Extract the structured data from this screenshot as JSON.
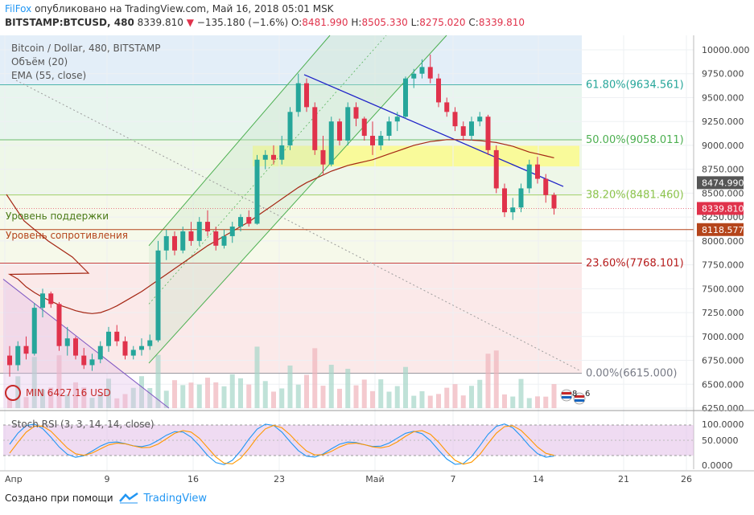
{
  "header": {
    "author": "FilFox",
    "published_text": "опубликовано на TradingView.com, Май 16, 2018 05:01 MSK",
    "symbol_line": "BITSTAMP:BTCUSD, 480",
    "last": "8339.810",
    "change": "−135.180 (−1.6%)",
    "o_label": "O:",
    "o": "8481.990",
    "h_label": "H:",
    "h": "8505.330",
    "l_label": "L:",
    "l": "8275.020",
    "c_label": "C:",
    "c": "8339.810"
  },
  "pane": {
    "title": "Bitcoin / Dollar, 480, BITSTAMP",
    "volume_label": "Объём (20)",
    "ema_label": "EMA (55, close)",
    "support_label": "Уровень поддержки",
    "resistance_label": "Уровень сопротивления",
    "min_label": "MIN 6427.16 USD",
    "event_count": "8",
    "event_count2": "6"
  },
  "fib": [
    {
      "pct": "61.80%",
      "value": "9634.561",
      "color": "#26a69a"
    },
    {
      "pct": "50.00%",
      "value": "9058.011",
      "color": "#4caf50"
    },
    {
      "pct": "38.20%",
      "value": "8481.460",
      "color": "#8bc34a"
    },
    {
      "pct": "23.60%",
      "value": "7768.101",
      "color": "#b71c1c"
    },
    {
      "pct": "0.00%",
      "value": "6615.000",
      "color": "#787b86"
    }
  ],
  "price_axis": [
    "10000.000",
    "9750.000",
    "9500.000",
    "9250.000",
    "9000.000",
    "8750.000",
    "8500.000",
    "8250.000",
    "8000.000",
    "7750.000",
    "7500.000",
    "7250.000",
    "7000.000",
    "6750.000",
    "6500.000",
    "6250.000"
  ],
  "price_tags": [
    {
      "value": "8474.990",
      "bg": "#555555"
    },
    {
      "value": "8339.810",
      "bg": "#e0324b"
    },
    {
      "value": "8118.577",
      "bg": "#b5451b"
    }
  ],
  "stoch": {
    "label": "Stoch RSI (3, 3, 14, 14, close)",
    "axis": [
      "100.0000",
      "50.0000",
      "0.0000"
    ]
  },
  "time_axis": [
    "Апр",
    "9",
    "16",
    "23",
    "Май",
    "7",
    "14",
    "21",
    "26"
  ],
  "footer": {
    "made_with": "Создано при помощи",
    "brand": "TradingView"
  },
  "colors": {
    "up": "#26a69a",
    "down": "#e0324b",
    "ema": "#a52714",
    "trend": "#1e22c8",
    "channel": "#4caf50",
    "stoch_k": "#2196f3",
    "stoch_d": "#ff9800"
  },
  "chart_data": {
    "type": "candlestick",
    "symbol": "BITSTAMP:BTCUSD",
    "timeframe": "480",
    "candles": [
      {
        "o": 6800,
        "h": 6900,
        "l": 6580,
        "c": 6700
      },
      {
        "o": 6700,
        "h": 6950,
        "l": 6640,
        "c": 6900
      },
      {
        "o": 6900,
        "h": 7000,
        "l": 6760,
        "c": 6820
      },
      {
        "o": 6820,
        "h": 7350,
        "l": 6800,
        "c": 7300
      },
      {
        "o": 7300,
        "h": 7500,
        "l": 7200,
        "c": 7450
      },
      {
        "o": 7450,
        "h": 7470,
        "l": 7300,
        "c": 7340
      },
      {
        "o": 7340,
        "h": 7360,
        "l": 6850,
        "c": 6900
      },
      {
        "o": 6900,
        "h": 7100,
        "l": 6800,
        "c": 6980
      },
      {
        "o": 6980,
        "h": 7000,
        "l": 6760,
        "c": 6800
      },
      {
        "o": 6800,
        "h": 6880,
        "l": 6660,
        "c": 6700
      },
      {
        "o": 6700,
        "h": 6820,
        "l": 6640,
        "c": 6760
      },
      {
        "o": 6760,
        "h": 6950,
        "l": 6720,
        "c": 6900
      },
      {
        "o": 6900,
        "h": 7100,
        "l": 6840,
        "c": 7050
      },
      {
        "o": 7050,
        "h": 7120,
        "l": 6900,
        "c": 6950
      },
      {
        "o": 6950,
        "h": 7000,
        "l": 6760,
        "c": 6800
      },
      {
        "o": 6800,
        "h": 6900,
        "l": 6760,
        "c": 6860
      },
      {
        "o": 6860,
        "h": 6980,
        "l": 6800,
        "c": 6900
      },
      {
        "o": 6900,
        "h": 7020,
        "l": 6860,
        "c": 6960
      },
      {
        "o": 6960,
        "h": 8000,
        "l": 6940,
        "c": 7900
      },
      {
        "o": 7900,
        "h": 8120,
        "l": 7800,
        "c": 8050
      },
      {
        "o": 8050,
        "h": 8100,
        "l": 7850,
        "c": 7900
      },
      {
        "o": 7900,
        "h": 8150,
        "l": 7870,
        "c": 8100
      },
      {
        "o": 8100,
        "h": 8200,
        "l": 7950,
        "c": 8000
      },
      {
        "o": 8000,
        "h": 8250,
        "l": 7950,
        "c": 8200
      },
      {
        "o": 8200,
        "h": 8320,
        "l": 8050,
        "c": 8100
      },
      {
        "o": 8100,
        "h": 8150,
        "l": 7900,
        "c": 7950
      },
      {
        "o": 7950,
        "h": 8120,
        "l": 7920,
        "c": 8050
      },
      {
        "o": 8050,
        "h": 8200,
        "l": 7980,
        "c": 8150
      },
      {
        "o": 8150,
        "h": 8280,
        "l": 8100,
        "c": 8250
      },
      {
        "o": 8250,
        "h": 8320,
        "l": 8150,
        "c": 8180
      },
      {
        "o": 8180,
        "h": 8900,
        "l": 8170,
        "c": 8850
      },
      {
        "o": 8850,
        "h": 8950,
        "l": 8750,
        "c": 8900
      },
      {
        "o": 8900,
        "h": 9000,
        "l": 8800,
        "c": 8850
      },
      {
        "o": 8850,
        "h": 9100,
        "l": 8800,
        "c": 9000
      },
      {
        "o": 9000,
        "h": 9400,
        "l": 8950,
        "c": 9350
      },
      {
        "o": 9350,
        "h": 9750,
        "l": 9300,
        "c": 9650
      },
      {
        "o": 9650,
        "h": 9700,
        "l": 9350,
        "c": 9400
      },
      {
        "o": 9400,
        "h": 9450,
        "l": 8900,
        "c": 8950
      },
      {
        "o": 8950,
        "h": 9100,
        "l": 8700,
        "c": 8800
      },
      {
        "o": 8800,
        "h": 9300,
        "l": 8780,
        "c": 9250
      },
      {
        "o": 9250,
        "h": 9280,
        "l": 9000,
        "c": 9050
      },
      {
        "o": 9050,
        "h": 9450,
        "l": 9000,
        "c": 9400
      },
      {
        "o": 9400,
        "h": 9450,
        "l": 9200,
        "c": 9280
      },
      {
        "o": 9280,
        "h": 9300,
        "l": 9050,
        "c": 9100
      },
      {
        "o": 9100,
        "h": 9250,
        "l": 8900,
        "c": 9000
      },
      {
        "o": 9000,
        "h": 9150,
        "l": 8950,
        "c": 9100
      },
      {
        "o": 9100,
        "h": 9300,
        "l": 9050,
        "c": 9250
      },
      {
        "o": 9250,
        "h": 9350,
        "l": 9150,
        "c": 9300
      },
      {
        "o": 9300,
        "h": 9720,
        "l": 9280,
        "c": 9700
      },
      {
        "o": 9700,
        "h": 9800,
        "l": 9600,
        "c": 9750
      },
      {
        "o": 9750,
        "h": 9900,
        "l": 9700,
        "c": 9820
      },
      {
        "o": 9820,
        "h": 9950,
        "l": 9650,
        "c": 9700
      },
      {
        "o": 9700,
        "h": 9750,
        "l": 9400,
        "c": 9450
      },
      {
        "o": 9450,
        "h": 9500,
        "l": 9300,
        "c": 9350
      },
      {
        "o": 9350,
        "h": 9400,
        "l": 9150,
        "c": 9200
      },
      {
        "o": 9200,
        "h": 9250,
        "l": 9050,
        "c": 9100
      },
      {
        "o": 9100,
        "h": 9300,
        "l": 9050,
        "c": 9250
      },
      {
        "o": 9250,
        "h": 9350,
        "l": 9200,
        "c": 9300
      },
      {
        "o": 9300,
        "h": 9320,
        "l": 8900,
        "c": 8950
      },
      {
        "o": 8950,
        "h": 9000,
        "l": 8500,
        "c": 8550
      },
      {
        "o": 8550,
        "h": 8600,
        "l": 8250,
        "c": 8300
      },
      {
        "o": 8300,
        "h": 8450,
        "l": 8220,
        "c": 8350
      },
      {
        "o": 8350,
        "h": 8600,
        "l": 8300,
        "c": 8550
      },
      {
        "o": 8550,
        "h": 8850,
        "l": 8500,
        "c": 8800
      },
      {
        "o": 8800,
        "h": 8880,
        "l": 8600,
        "c": 8650
      },
      {
        "o": 8650,
        "h": 8700,
        "l": 8400,
        "c": 8480
      },
      {
        "o": 8482,
        "h": 8505,
        "l": 8275,
        "c": 8340
      }
    ],
    "ema55": [
      7650,
      7600,
      7520,
      7460,
      7410,
      7370,
      7330,
      7300,
      7270,
      7250,
      7240,
      7250,
      7280,
      7320,
      7370,
      7420,
      7470,
      7530,
      7590,
      7650,
      7710,
      7770,
      7830,
      7890,
      7950,
      8000,
      8050,
      8100,
      8150,
      8200,
      8260,
      8320,
      8380,
      8440,
      8500,
      8560,
      8610,
      8650,
      8690,
      8730,
      8760,
      8790,
      8810,
      8830,
      8850,
      8880,
      8910,
      8940,
      8970,
      9000,
      9020,
      9040,
      9050,
      9060,
      9060,
      9060,
      9055,
      9050,
      9040,
      9030,
      9010,
      8990,
      8960,
      8930,
      8910,
      8890,
      8870
    ],
    "fib_levels": [
      {
        "label": "61.80%",
        "value": 9634.561
      },
      {
        "label": "50.00%",
        "value": 9058.011
      },
      {
        "label": "38.20%",
        "value": 8481.46
      },
      {
        "label": "23.60%",
        "value": 7768.101
      },
      {
        "label": "0.00%",
        "value": 6615.0
      }
    ],
    "support": 8339.81,
    "resistance": 8118.577,
    "ylim": [
      6250,
      10100
    ]
  }
}
